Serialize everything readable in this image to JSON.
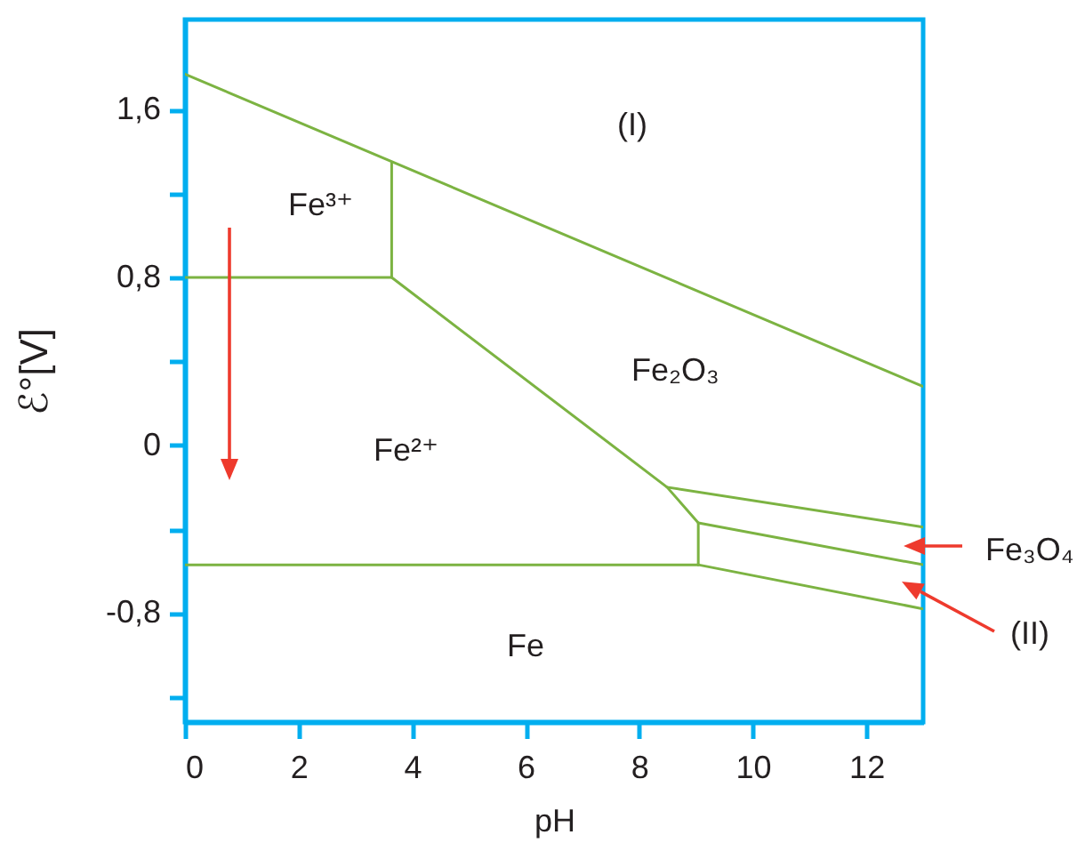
{
  "chart_data": {
    "type": "line",
    "xlabel": "pH",
    "ylabel": "ℰ°[V]",
    "xlim": [
      0,
      13
    ],
    "xticks": [
      0,
      2,
      4,
      6,
      8,
      10,
      12
    ],
    "ylim": [
      -1.32,
      2.03
    ],
    "yticks": [
      {
        "value": -1.2,
        "label": null
      },
      {
        "value": -0.8,
        "label": "-0,8"
      },
      {
        "value": -0.4,
        "label": null
      },
      0,
      {
        "value": 0.4,
        "label": null
      },
      {
        "value": 0.8,
        "label": "0,8"
      },
      {
        "value": 1.2,
        "label": null
      },
      {
        "value": 1.6,
        "label": "1,6"
      }
    ],
    "series": [
      {
        "color": "#7cb342",
        "x": [
          0,
          13
        ],
        "values": [
          1.77,
          0.28
        ]
      },
      {
        "color": "#7cb342",
        "x": [
          0,
          3.64,
          3.64
        ],
        "values": [
          0.8,
          0.8,
          1.35
        ]
      },
      {
        "color": "#7cb342",
        "x": [
          3.64,
          8.49,
          9.04,
          9.04
        ],
        "values": [
          0.8,
          -0.2,
          -0.37,
          -0.57
        ]
      },
      {
        "color": "#7cb342",
        "x": [
          0,
          9.04,
          13
        ],
        "values": [
          -0.57,
          -0.57,
          -0.78
        ]
      },
      {
        "color": "#7cb342",
        "x": [
          8.49,
          13
        ],
        "values": [
          -0.2,
          -0.39
        ]
      },
      {
        "color": "#7cb342",
        "x": [
          9.04,
          13
        ],
        "values": [
          -0.37,
          -0.57
        ]
      }
    ],
    "annotations": [
      "(I)",
      "Fe³⁺",
      "Fe₂O₃",
      "Fe²⁺",
      "Fe",
      "Fe₃O₄",
      "(II)"
    ]
  }
}
